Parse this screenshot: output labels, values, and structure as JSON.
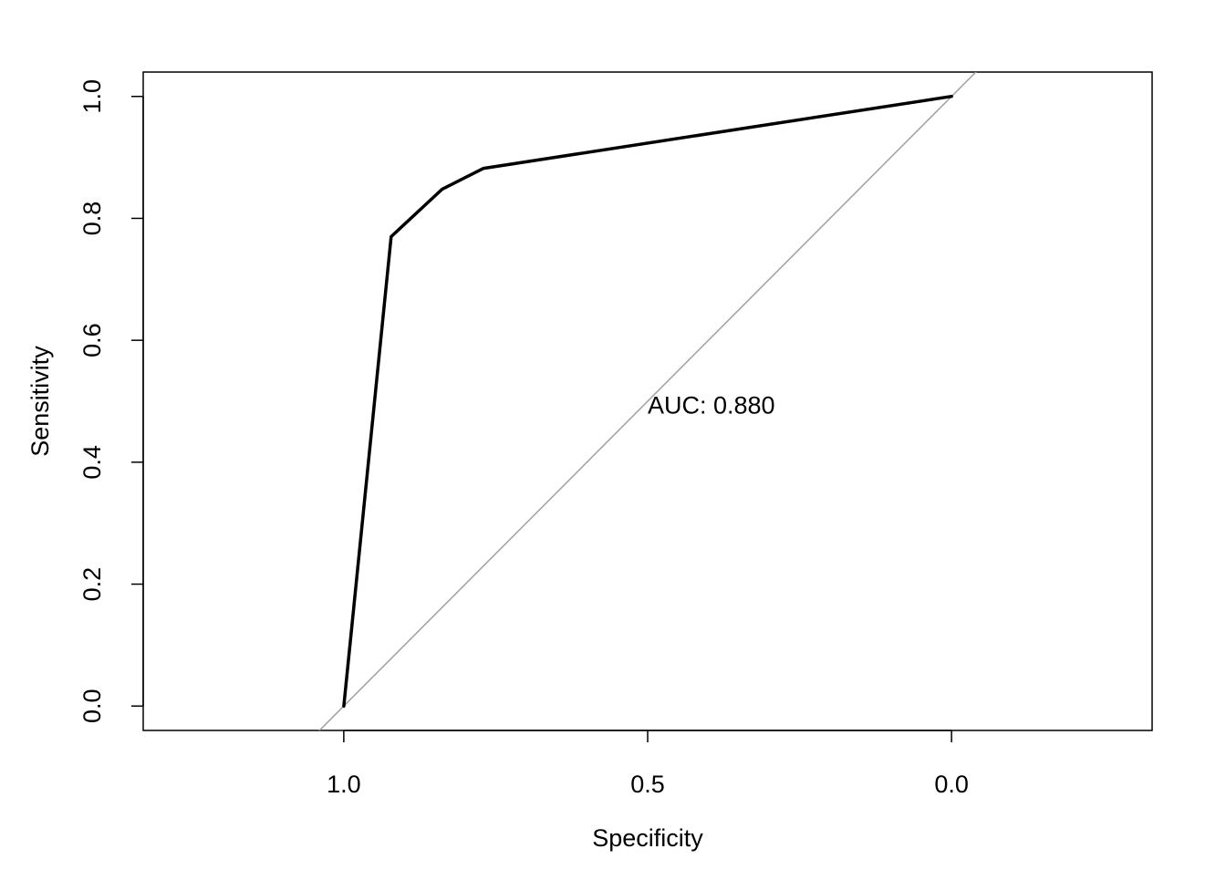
{
  "chart_data": {
    "type": "line",
    "title": "",
    "xlabel": "Specificity",
    "ylabel": "Sensitivity",
    "x_reversed": true,
    "xlim": [
      1.33,
      -0.33
    ],
    "ylim": [
      -0.04,
      1.04
    ],
    "xticks": [
      1.0,
      0.5,
      0.0
    ],
    "xtick_labels": [
      "1.0",
      "0.5",
      "0.0"
    ],
    "yticks": [
      0.0,
      0.2,
      0.4,
      0.6,
      0.8,
      1.0
    ],
    "ytick_labels": [
      "0.0",
      "0.2",
      "0.4",
      "0.6",
      "0.8",
      "1.0"
    ],
    "grid": false,
    "legend": "none",
    "series": [
      {
        "x": [
          1.0,
          0.922,
          0.838,
          0.77,
          0.0
        ],
        "y": [
          0.0,
          0.77,
          0.848,
          0.882,
          1.0
        ],
        "color": "#000000"
      }
    ],
    "reference_line": {
      "from": [
        1.0,
        0.0
      ],
      "to": [
        0.0,
        1.0
      ],
      "color": "#a0a0a0"
    },
    "annotations": [
      {
        "text": "AUC: 0.880",
        "x": 0.5,
        "y": 0.48
      }
    ]
  }
}
